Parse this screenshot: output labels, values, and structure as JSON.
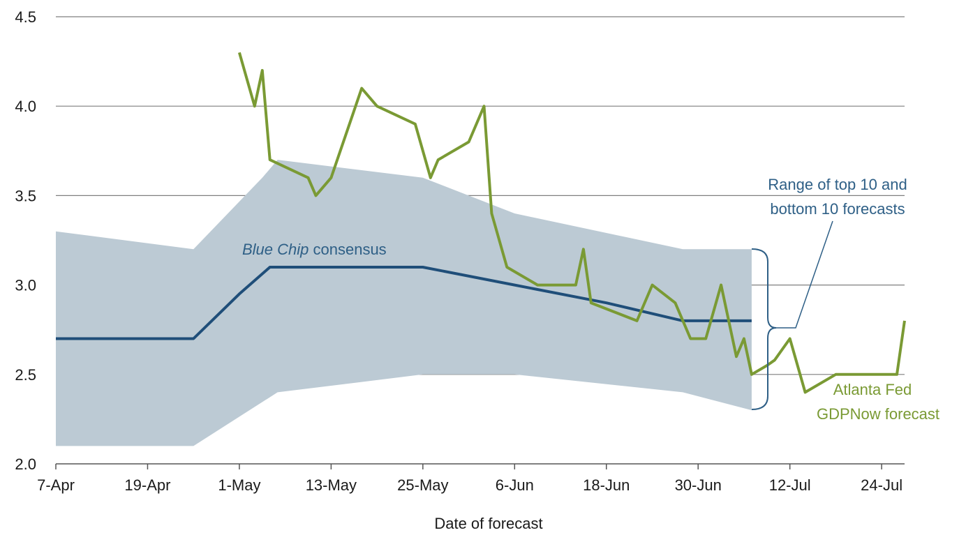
{
  "chart_data": {
    "type": "line",
    "title": "",
    "xlabel": "Date of forecast",
    "ylabel": "",
    "ylim": [
      2.0,
      4.5
    ],
    "yticks": [
      "2.0",
      "2.5",
      "3.0",
      "3.5",
      "4.0",
      "4.5"
    ],
    "xticks": [
      {
        "label": "7-Apr",
        "date": "2018-04-07"
      },
      {
        "label": "19-Apr",
        "date": "2018-04-19"
      },
      {
        "label": "1-May",
        "date": "2018-05-01"
      },
      {
        "label": "13-May",
        "date": "2018-05-13"
      },
      {
        "label": "25-May",
        "date": "2018-05-25"
      },
      {
        "label": "6-Jun",
        "date": "2018-06-06"
      },
      {
        "label": "18-Jun",
        "date": "2018-06-18"
      },
      {
        "label": "30-Jun",
        "date": "2018-06-30"
      },
      {
        "label": "12-Jul",
        "date": "2018-07-12"
      },
      {
        "label": "24-Jul",
        "date": "2018-07-24"
      }
    ],
    "xrange": [
      "2018-04-07",
      "2018-07-27"
    ],
    "grid": "horizontal",
    "colors": {
      "band": "#bccad4",
      "consensus": "#1f4e79",
      "gdpnow": "#7a9a34",
      "annotation_blue": "#2e5f86",
      "grid": "#7f7f7f"
    },
    "band": {
      "name": "",
      "upper": [
        {
          "date": "2018-04-07",
          "value": 3.3
        },
        {
          "date": "2018-04-25",
          "value": 3.2
        },
        {
          "date": "2018-05-04",
          "value": 3.6
        },
        {
          "date": "2018-05-06",
          "value": 3.7
        },
        {
          "date": "2018-05-25",
          "value": 3.6
        },
        {
          "date": "2018-06-06",
          "value": 3.4
        },
        {
          "date": "2018-06-28",
          "value": 3.2
        },
        {
          "date": "2018-07-07",
          "value": 3.2
        }
      ],
      "lower": [
        {
          "date": "2018-04-07",
          "value": 2.1
        },
        {
          "date": "2018-04-25",
          "value": 2.1
        },
        {
          "date": "2018-05-06",
          "value": 2.4
        },
        {
          "date": "2018-05-25",
          "value": 2.5
        },
        {
          "date": "2018-06-06",
          "value": 2.5
        },
        {
          "date": "2018-06-28",
          "value": 2.4
        },
        {
          "date": "2018-07-07",
          "value": 2.3
        }
      ]
    },
    "series": [
      {
        "name": "Blue Chip consensus",
        "points": [
          {
            "date": "2018-04-07",
            "value": 2.7
          },
          {
            "date": "2018-04-25",
            "value": 2.7
          },
          {
            "date": "2018-05-01",
            "value": 2.95
          },
          {
            "date": "2018-05-05",
            "value": 3.1
          },
          {
            "date": "2018-05-25",
            "value": 3.1
          },
          {
            "date": "2018-06-06",
            "value": 3.0
          },
          {
            "date": "2018-06-18",
            "value": 2.9
          },
          {
            "date": "2018-06-28",
            "value": 2.8
          },
          {
            "date": "2018-07-07",
            "value": 2.8
          }
        ]
      },
      {
        "name": "Atlanta Fed GDPNow forecast",
        "points": [
          {
            "date": "2018-05-01",
            "value": 4.3
          },
          {
            "date": "2018-05-03",
            "value": 4.0
          },
          {
            "date": "2018-05-04",
            "value": 4.2
          },
          {
            "date": "2018-05-05",
            "value": 3.7
          },
          {
            "date": "2018-05-10",
            "value": 3.6
          },
          {
            "date": "2018-05-11",
            "value": 3.5
          },
          {
            "date": "2018-05-13",
            "value": 3.6
          },
          {
            "date": "2018-05-17",
            "value": 4.1
          },
          {
            "date": "2018-05-19",
            "value": 4.0
          },
          {
            "date": "2018-05-24",
            "value": 3.9
          },
          {
            "date": "2018-05-26",
            "value": 3.6
          },
          {
            "date": "2018-05-27",
            "value": 3.7
          },
          {
            "date": "2018-05-31",
            "value": 3.8
          },
          {
            "date": "2018-06-02",
            "value": 4.0
          },
          {
            "date": "2018-06-03",
            "value": 3.4
          },
          {
            "date": "2018-06-05",
            "value": 3.1
          },
          {
            "date": "2018-06-09",
            "value": 3.0
          },
          {
            "date": "2018-06-14",
            "value": 3.0
          },
          {
            "date": "2018-06-15",
            "value": 3.2
          },
          {
            "date": "2018-06-16",
            "value": 2.9
          },
          {
            "date": "2018-06-22",
            "value": 2.8
          },
          {
            "date": "2018-06-24",
            "value": 3.0
          },
          {
            "date": "2018-06-27",
            "value": 2.9
          },
          {
            "date": "2018-06-29",
            "value": 2.7
          },
          {
            "date": "2018-07-01",
            "value": 2.7
          },
          {
            "date": "2018-07-03",
            "value": 3.0
          },
          {
            "date": "2018-07-05",
            "value": 2.6
          },
          {
            "date": "2018-07-06",
            "value": 2.7
          },
          {
            "date": "2018-07-07",
            "value": 2.5
          },
          {
            "date": "2018-07-09",
            "value": 2.55
          },
          {
            "date": "2018-07-10",
            "value": 2.58
          },
          {
            "date": "2018-07-12",
            "value": 2.7
          },
          {
            "date": "2018-07-14",
            "value": 2.4
          },
          {
            "date": "2018-07-18",
            "value": 2.5
          },
          {
            "date": "2018-07-26",
            "value": 2.5
          },
          {
            "date": "2018-07-27",
            "value": 2.8
          }
        ]
      }
    ],
    "annotations": {
      "consensus_italic": "Blue Chip",
      "consensus_rest": " consensus",
      "range_line1": "Range of top 10 and",
      "range_line2": "bottom 10 forecasts",
      "gdpnow_line1": "Atlanta Fed",
      "gdpnow_line2": "GDPNow forecast"
    }
  }
}
